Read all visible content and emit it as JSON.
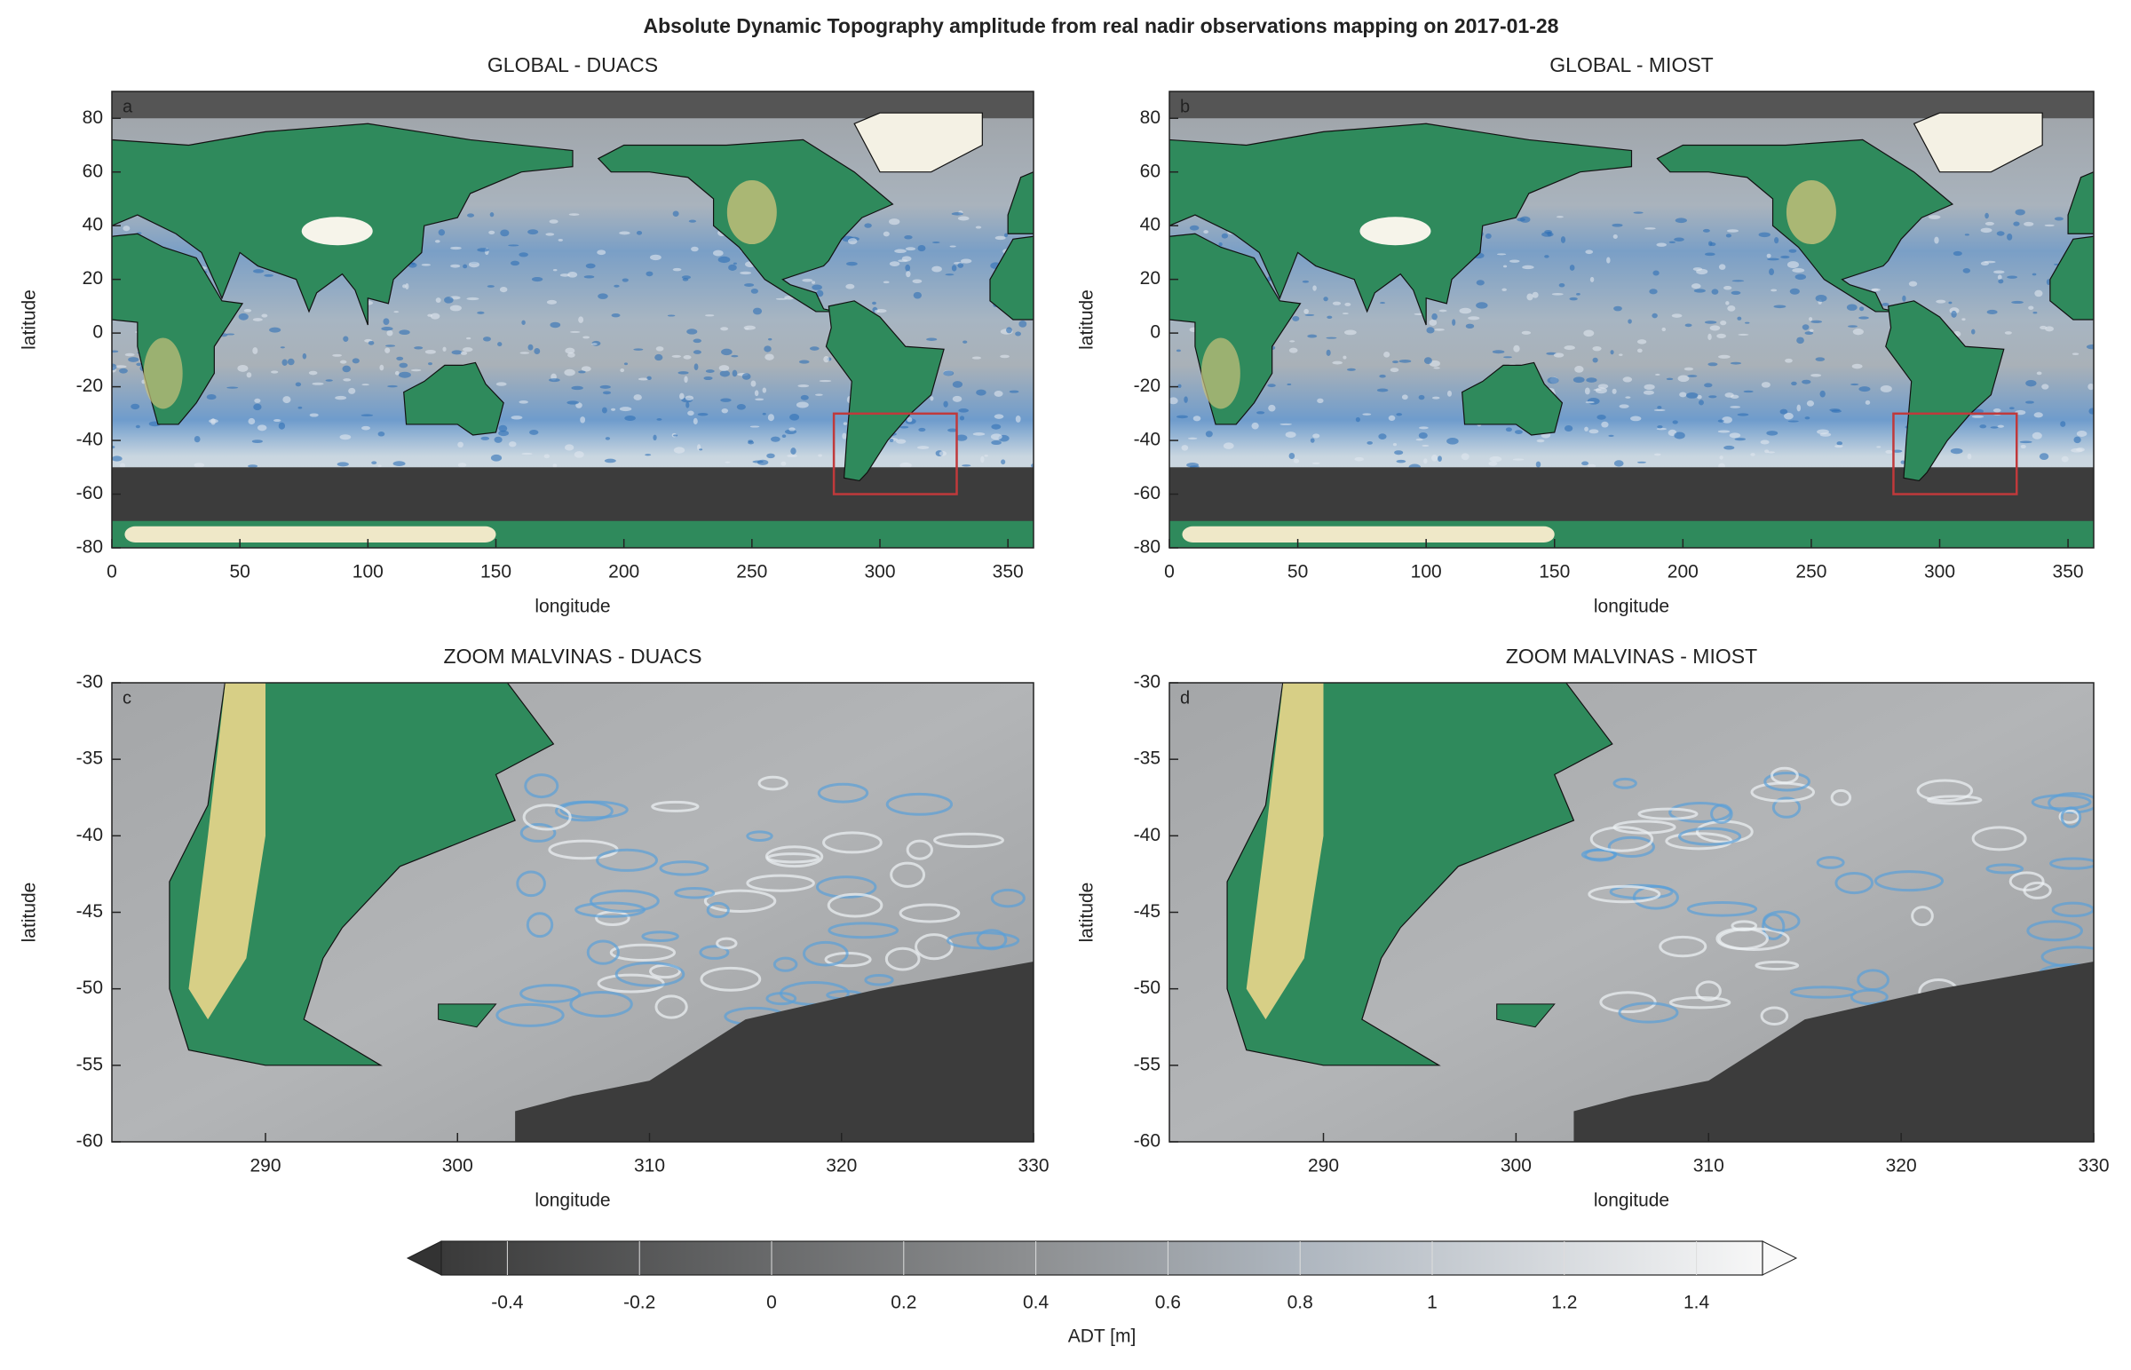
{
  "title": "Absolute Dynamic Topography amplitude from real nadir observations mapping on 2017-01-28",
  "chart_data": [
    {
      "type": "map",
      "title": "GLOBAL - DUACS",
      "label": "a",
      "xlabel": "longitude",
      "ylabel": "latitude",
      "xlim": [
        0,
        360
      ],
      "ylim": [
        -80,
        90
      ],
      "xticks": [
        0,
        50,
        100,
        150,
        200,
        250,
        300,
        350
      ],
      "yticks": [
        -80,
        -60,
        -40,
        -20,
        0,
        20,
        40,
        60,
        80
      ]
    },
    {
      "type": "map",
      "title": "GLOBAL - MIOST",
      "label": "b",
      "xlabel": "longitude",
      "ylabel": "latitude",
      "xlim": [
        0,
        360
      ],
      "ylim": [
        -80,
        90
      ],
      "xticks": [
        0,
        50,
        100,
        150,
        200,
        250,
        300,
        350
      ],
      "yticks": [
        -80,
        -60,
        -40,
        -20,
        0,
        20,
        40,
        60,
        80
      ]
    },
    {
      "type": "map",
      "title": "ZOOM MALVINAS - DUACS",
      "label": "c",
      "xlabel": "longitude",
      "ylabel": "latitude",
      "xlim": [
        282,
        330
      ],
      "ylim": [
        -60,
        -30
      ],
      "xticks": [
        290,
        300,
        310,
        320,
        330
      ],
      "yticks": [
        -60,
        -55,
        -50,
        -45,
        -40,
        -35,
        -30
      ]
    },
    {
      "type": "map",
      "title": "ZOOM MALVINAS - MIOST",
      "label": "d",
      "xlabel": "longitude",
      "ylabel": "latitude",
      "xlim": [
        282,
        330
      ],
      "ylim": [
        -60,
        -30
      ],
      "xticks": [
        290,
        300,
        310,
        320,
        330
      ],
      "yticks": [
        -60,
        -55,
        -50,
        -45,
        -40,
        -35,
        -30
      ]
    },
    {
      "type": "colorbar",
      "xlabel": "ADT [m]",
      "xlim": [
        -0.5,
        1.5
      ],
      "xticks": [
        -0.4,
        -0.2,
        0,
        0.2,
        0.4,
        0.6,
        0.8,
        1,
        1.2,
        1.4
      ]
    }
  ]
}
